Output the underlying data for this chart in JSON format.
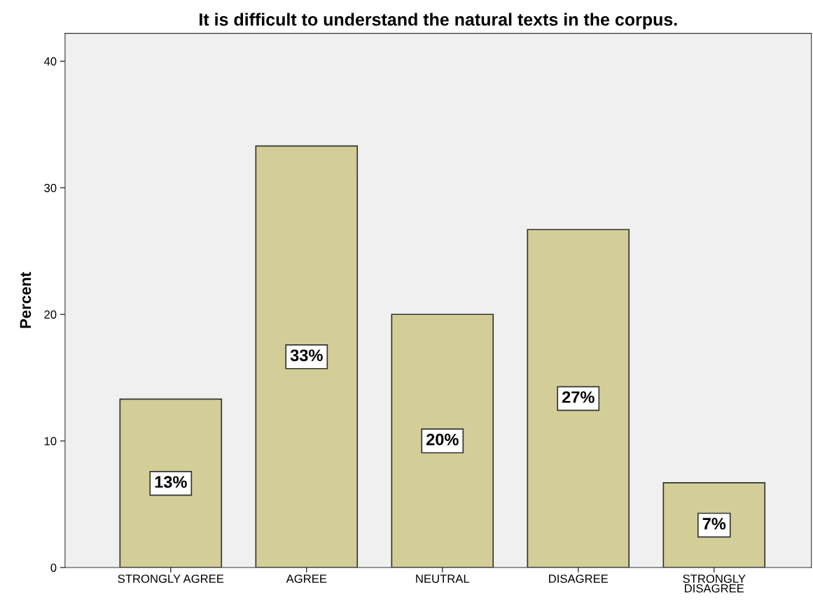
{
  "chart_data": {
    "type": "bar",
    "title": "It is difficult to understand the natural texts in the corpus.",
    "ylabel": "Percent",
    "categories": [
      "STRONGLY AGREE",
      "AGREE",
      "NEUTRAL",
      "DISAGREE",
      "STRONGLY\nDISAGREE"
    ],
    "values": [
      13.3,
      33.3,
      20,
      26.7,
      6.7
    ],
    "value_labels": [
      "13%",
      "33%",
      "20%",
      "27%",
      "7%"
    ],
    "color": "#d3ce98",
    "ylim": [
      0,
      42.2
    ],
    "yticks": [
      0,
      10,
      20,
      30,
      40
    ],
    "grid": false
  }
}
